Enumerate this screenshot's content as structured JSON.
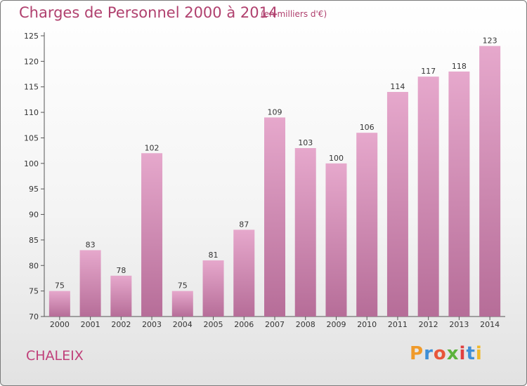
{
  "header": {
    "title": "Charges de Personnel 2000 à 2014",
    "subtitle": "(en milliers d'€)"
  },
  "place_name": "CHALEIX",
  "logo": {
    "text": "Proxiti"
  },
  "colors": {
    "bar_top": "#e6a8cc",
    "bar_bottom": "#b66d98",
    "title": "#b0406e",
    "place": "#c0407a"
  },
  "chart_data": {
    "type": "bar",
    "title": "Charges de Personnel 2000 à 2014",
    "subtitle": "(en milliers d'€)",
    "categories": [
      "2000",
      "2001",
      "2002",
      "2003",
      "2004",
      "2005",
      "2006",
      "2007",
      "2008",
      "2009",
      "2010",
      "2011",
      "2012",
      "2013",
      "2014"
    ],
    "values": [
      75,
      83,
      78,
      102,
      75,
      81,
      87,
      109,
      103,
      100,
      106,
      114,
      117,
      118,
      123
    ],
    "ylim": [
      70,
      125
    ],
    "yticks": [
      70,
      75,
      80,
      85,
      90,
      95,
      100,
      105,
      110,
      115,
      120,
      125
    ],
    "grid": false,
    "data_labels": true
  }
}
